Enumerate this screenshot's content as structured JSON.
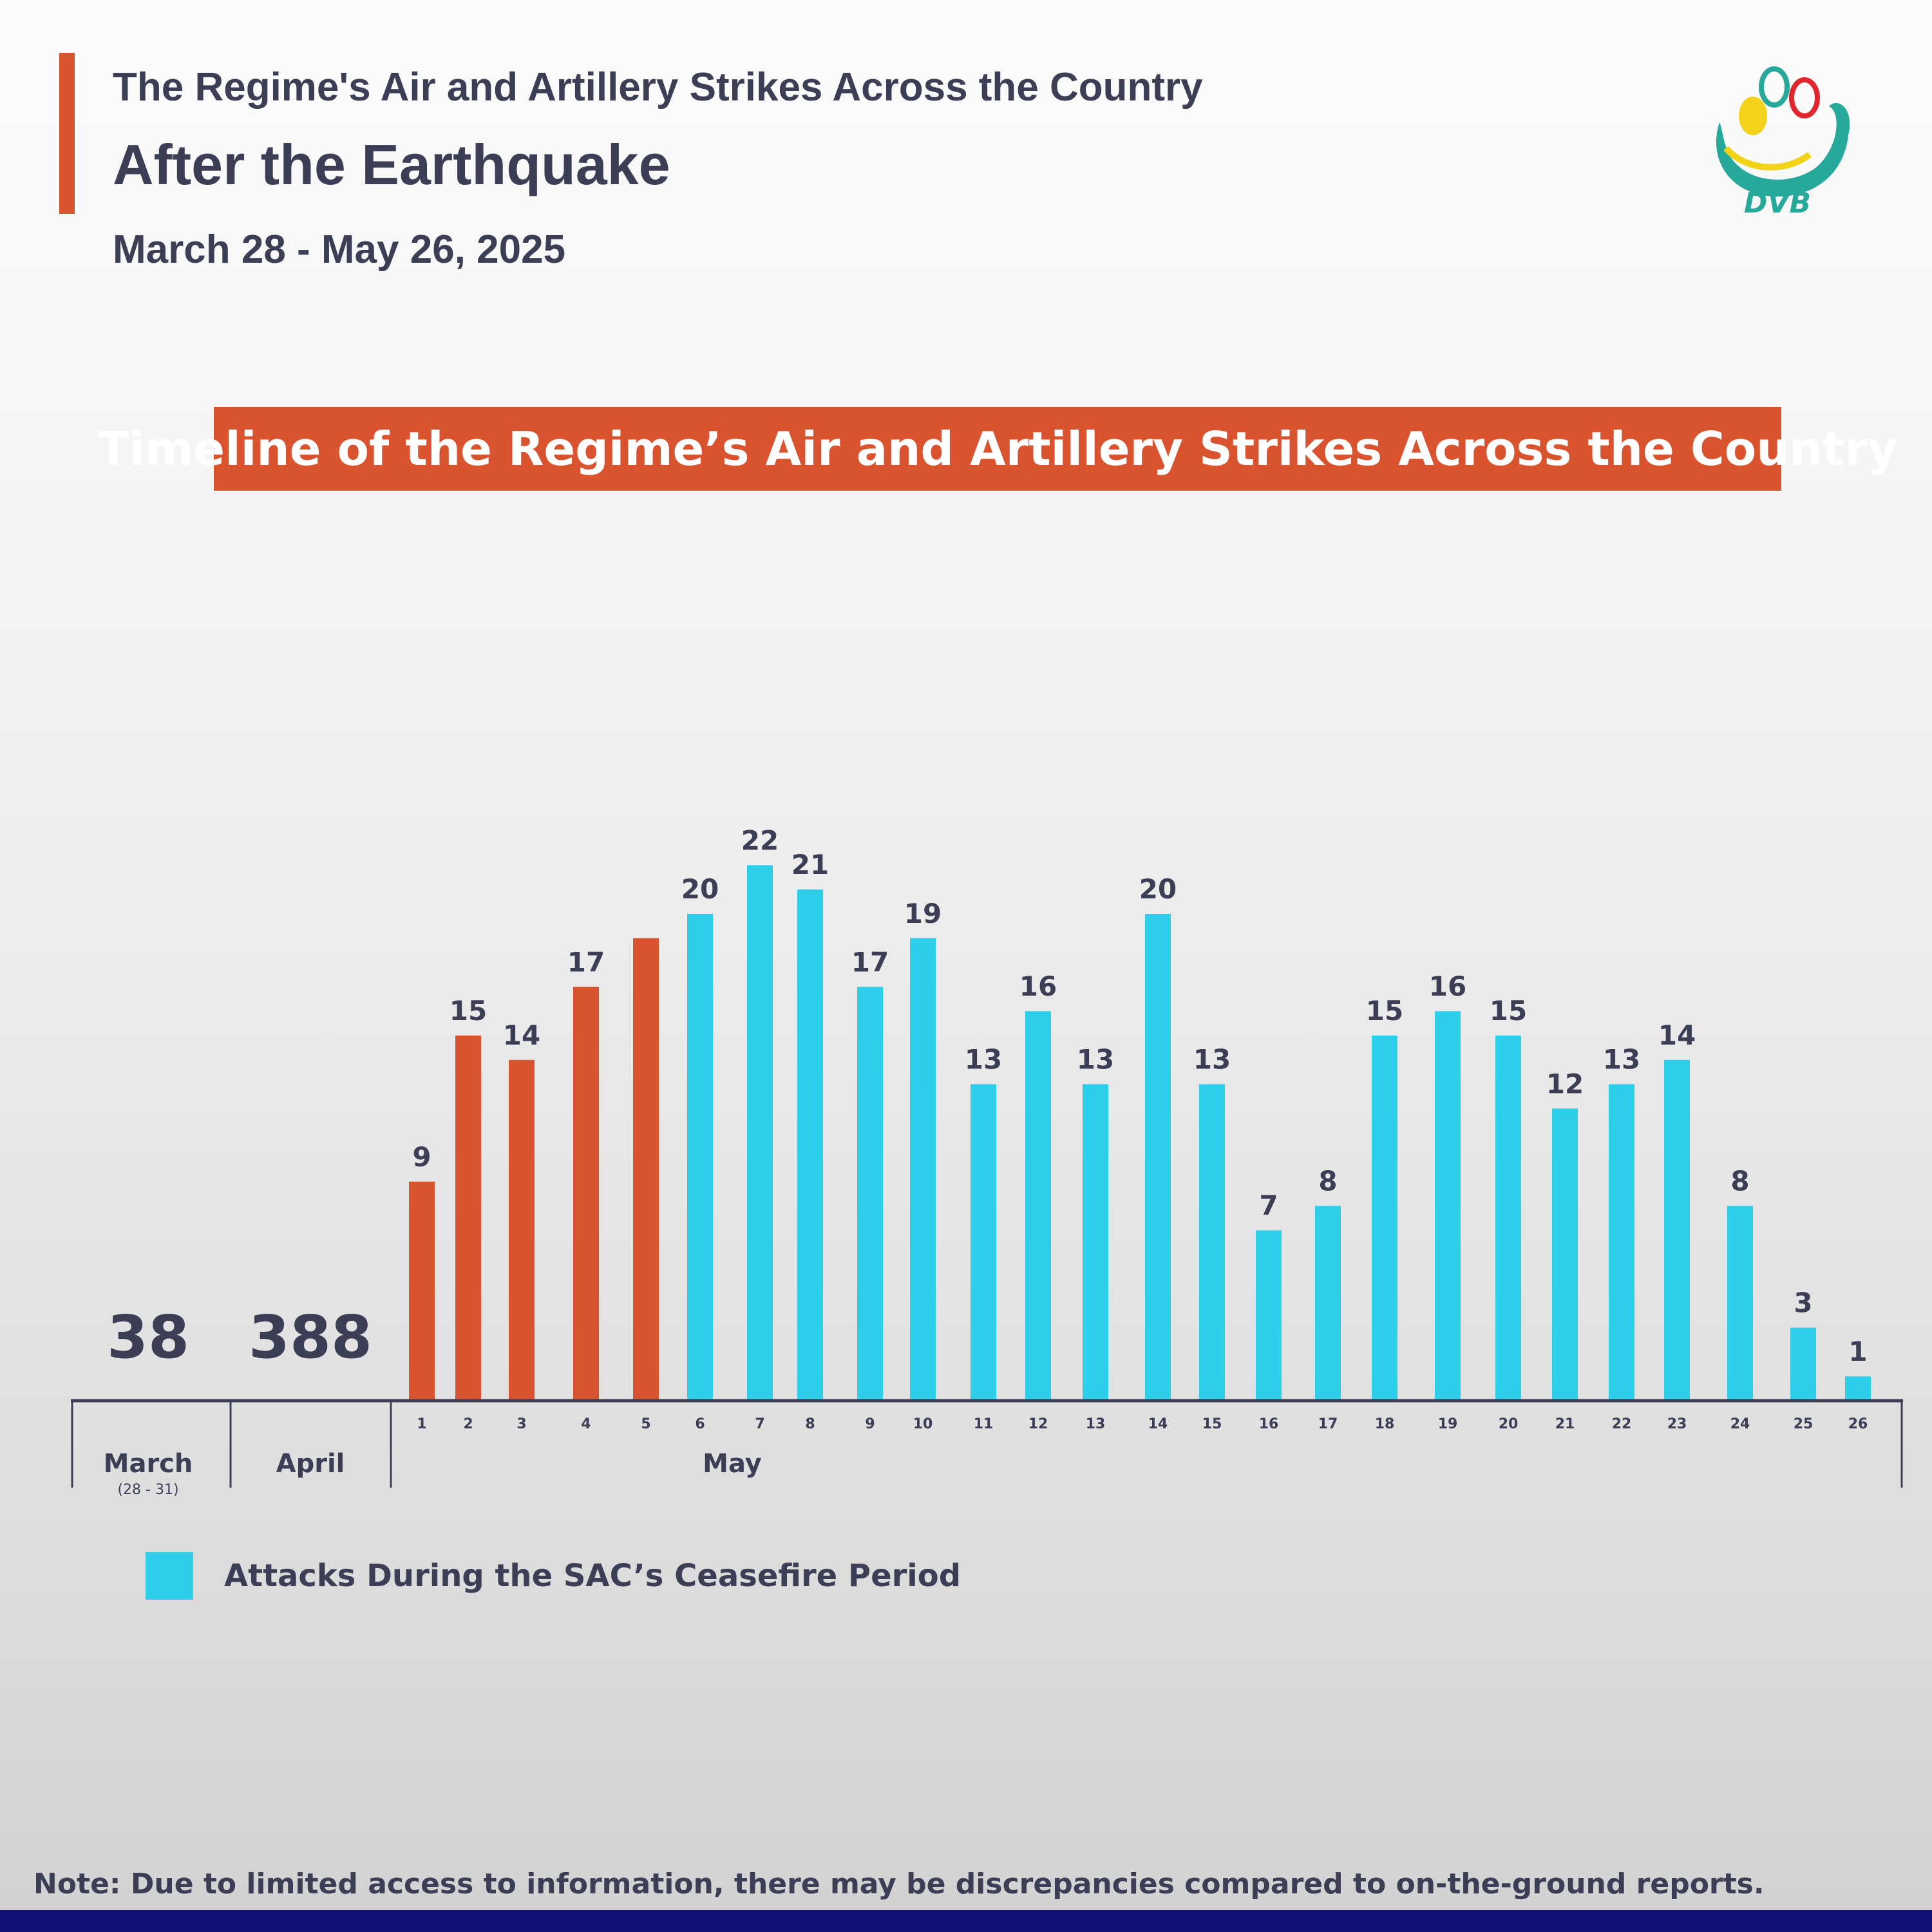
{
  "header": {
    "line1": "The Regime's Air and Artillery Strikes Across the Country",
    "line2": "After the Earthquake",
    "line3": "March 28 - May 26, 2025"
  },
  "logo": {
    "text": "DVB",
    "icon": "dvb-logo"
  },
  "banner": {
    "title": "Timeline of the Regime’s Air and Artillery Strikes Across the Country"
  },
  "chart_data": {
    "type": "bar",
    "title": "Timeline of the Regime’s Air and Artillery Strikes Across the Country",
    "totals": [
      {
        "period": "March",
        "sublabel": "(28 - 31)",
        "value": 38
      },
      {
        "period": "April",
        "sublabel": "",
        "value": 388
      }
    ],
    "group_label": "May",
    "categories": [
      "1",
      "2",
      "3",
      "4",
      "5",
      "6",
      "7",
      "8",
      "9",
      "10",
      "11",
      "12",
      "13",
      "14",
      "15",
      "16",
      "17",
      "18",
      "19",
      "20",
      "21",
      "22",
      "23",
      "24",
      "25",
      "26"
    ],
    "values": [
      9,
      15,
      14,
      17,
      19,
      20,
      22,
      21,
      17,
      19,
      13,
      16,
      13,
      20,
      13,
      7,
      8,
      15,
      16,
      15,
      12,
      13,
      14,
      8,
      3,
      1
    ],
    "data_labels": [
      "9",
      "15",
      "14",
      "17",
      "",
      "20",
      "22",
      "21",
      "17",
      "19",
      "13",
      "16",
      "13",
      "20",
      "13",
      "7",
      "8",
      "15",
      "16",
      "15",
      "12",
      "13",
      "14",
      "8",
      "3",
      "1"
    ],
    "ceasefire": [
      false,
      false,
      false,
      false,
      false,
      true,
      true,
      true,
      true,
      true,
      true,
      true,
      true,
      true,
      true,
      true,
      true,
      true,
      true,
      true,
      true,
      true,
      true,
      true,
      true,
      true
    ],
    "colors": {
      "normal": "#d9532e",
      "ceasefire": "#2ecfea",
      "axis": "#3b3e55"
    },
    "legend": [
      {
        "label": "Attacks During the SAC’s Ceasefire Period",
        "color": "#2ecfea"
      }
    ],
    "grid": false
  },
  "note": "Note: Due to limited access to information, there may be discrepancies compared to on-the-ground reports.",
  "footer_color": "#0e1176"
}
